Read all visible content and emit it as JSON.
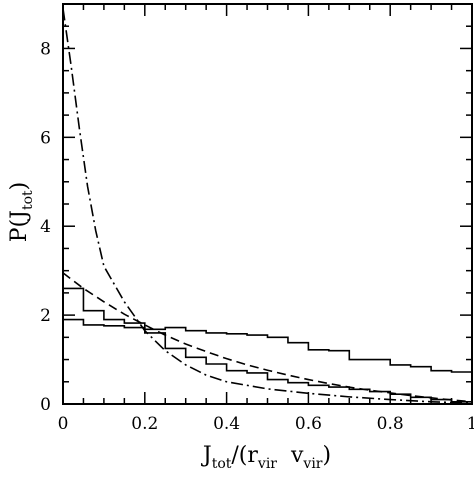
{
  "chart_data": {
    "type": "line",
    "title": "",
    "xlabel": {
      "main": "J",
      "sub": "tot",
      "rest1": "/(r",
      "sub2": "vir",
      "rest2": "  v",
      "sub3": "vir",
      "close": ")"
    },
    "ylabel": {
      "main": "P(J",
      "sub": "tot",
      "close": ")"
    },
    "xlim": [
      0,
      1
    ],
    "ylim": [
      0,
      9
    ],
    "xticks": [
      0,
      0.2,
      0.4,
      0.6,
      0.8,
      1
    ],
    "xtick_labels": [
      "0",
      "0.2",
      "0.4",
      "0.6",
      "0.8",
      "1"
    ],
    "yticks": [
      0,
      2,
      4,
      6,
      8
    ],
    "ytick_labels": [
      "0",
      "2",
      "4",
      "6",
      "8"
    ],
    "grid": false,
    "legend": "none",
    "series": [
      {
        "style": "histogram",
        "bin_edges": [
          0,
          0.05,
          0.1,
          0.15,
          0.2,
          0.25,
          0.3,
          0.35,
          0.4,
          0.45,
          0.5,
          0.55,
          0.6,
          0.65,
          0.7,
          0.75,
          0.8,
          0.85,
          0.9,
          0.95,
          1.0
        ],
        "values": [
          1.9,
          1.78,
          1.76,
          1.72,
          1.68,
          1.72,
          1.65,
          1.6,
          1.58,
          1.55,
          1.5,
          1.38,
          1.22,
          1.2,
          1.0,
          1.0,
          0.88,
          0.84,
          0.75,
          0.72
        ]
      },
      {
        "style": "histogram",
        "bin_edges": [
          0,
          0.05,
          0.1,
          0.15,
          0.2,
          0.25,
          0.3,
          0.35,
          0.4,
          0.45,
          0.5,
          0.55,
          0.6,
          0.65,
          0.7,
          0.75,
          0.8,
          0.85,
          0.9,
          0.95,
          1.0
        ],
        "values": [
          2.6,
          2.1,
          1.9,
          1.82,
          1.6,
          1.25,
          1.05,
          0.9,
          0.75,
          0.7,
          0.55,
          0.48,
          0.42,
          0.38,
          0.33,
          0.28,
          0.22,
          0.15,
          0.1,
          0.05
        ]
      },
      {
        "style": "dashed",
        "x": [
          0,
          0.05,
          0.1,
          0.15,
          0.2,
          0.25,
          0.3,
          0.35,
          0.4,
          0.45,
          0.5,
          0.55,
          0.6,
          0.65,
          0.7,
          0.75,
          0.8,
          0.85,
          0.9,
          0.95,
          1.0
        ],
        "y": [
          2.95,
          2.6,
          2.3,
          2.02,
          1.78,
          1.55,
          1.35,
          1.18,
          1.02,
          0.88,
          0.76,
          0.65,
          0.55,
          0.46,
          0.38,
          0.31,
          0.25,
          0.19,
          0.14,
          0.09,
          0.05
        ]
      },
      {
        "style": "dashdot",
        "x": [
          0,
          0.02,
          0.04,
          0.06,
          0.08,
          0.1,
          0.15,
          0.2,
          0.25,
          0.3,
          0.35,
          0.4,
          0.5,
          0.6,
          0.7,
          0.8,
          0.9,
          1.0
        ],
        "y": [
          8.9,
          7.6,
          6.2,
          4.9,
          3.9,
          3.1,
          2.3,
          1.65,
          1.2,
          0.88,
          0.65,
          0.5,
          0.34,
          0.24,
          0.16,
          0.1,
          0.05,
          0.02
        ]
      }
    ]
  }
}
